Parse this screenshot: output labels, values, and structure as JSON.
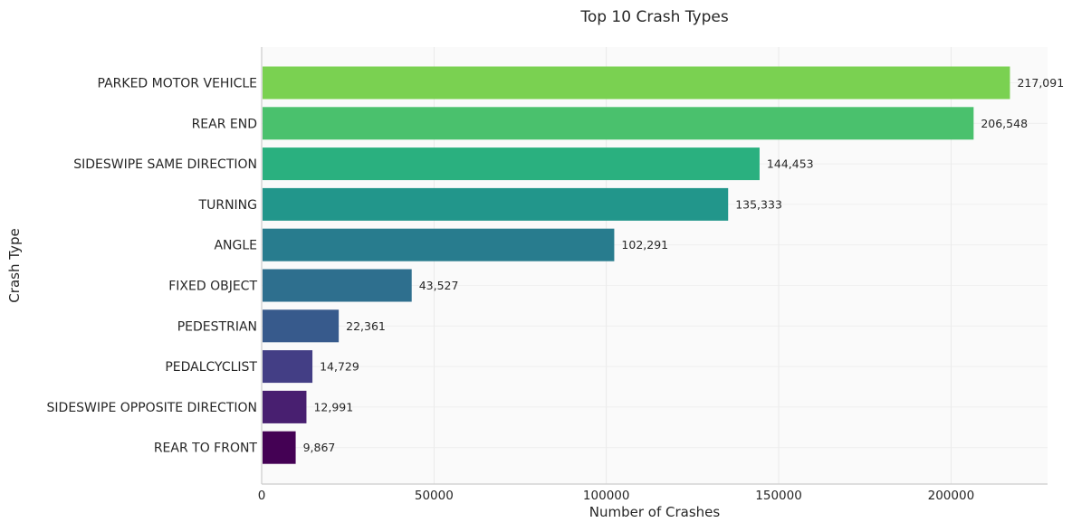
{
  "chart_data": {
    "type": "bar",
    "orientation": "horizontal",
    "title": "Top 10 Crash Types",
    "xlabel": "Number of Crashes",
    "ylabel": "Crash Type",
    "xlim": [
      0,
      228000
    ],
    "xticks": [
      0,
      50000,
      100000,
      150000,
      200000
    ],
    "xtick_labels": [
      "0",
      "50000",
      "100000",
      "150000",
      "200000"
    ],
    "grid": true,
    "categories": [
      "PARKED MOTOR VEHICLE",
      "REAR END",
      "SIDESWIPE SAME DIRECTION",
      "TURNING",
      "ANGLE",
      "FIXED OBJECT",
      "PEDESTRIAN",
      "PEDALCYCLIST",
      "SIDESWIPE OPPOSITE DIRECTION",
      "REAR TO FRONT"
    ],
    "values": [
      217091,
      206548,
      144453,
      135333,
      102291,
      43527,
      22361,
      14729,
      12991,
      9867
    ],
    "value_labels": [
      "217,091",
      "206,548",
      "144,453",
      "135,333",
      "102,291",
      "43,527",
      "22,361",
      "14,729",
      "12,991",
      "9,867"
    ],
    "colors": [
      "#7ad151",
      "#4ac16d",
      "#2ab07f",
      "#22968b",
      "#287c8e",
      "#2e6f8e",
      "#375a8c",
      "#433e85",
      "#481f70",
      "#440154"
    ]
  }
}
